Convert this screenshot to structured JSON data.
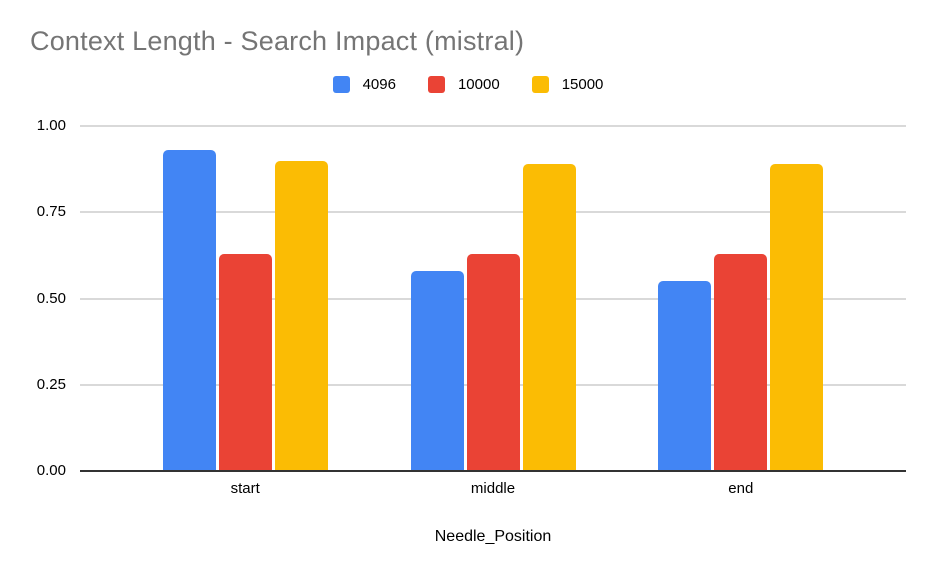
{
  "title": "Context Length - Search Impact (mistral)",
  "colors": {
    "title_text": "#757575",
    "axis_text": "#000000",
    "gridline": "#d9d9d9",
    "axis_line": "#333333",
    "background": "#ffffff",
    "series_blue": "#4285F4",
    "series_red": "#EA4335",
    "series_yellow": "#FBBC04"
  },
  "legend": {
    "items": [
      {
        "label": "4096",
        "color": "#4285F4"
      },
      {
        "label": "10000",
        "color": "#EA4335"
      },
      {
        "label": "15000",
        "color": "#FBBC04"
      }
    ]
  },
  "chart_data": {
    "type": "bar",
    "title": "Context Length - Search Impact (mistral)",
    "xlabel": "Needle_Position",
    "ylabel": "",
    "categories": [
      "start",
      "middle",
      "end"
    ],
    "series": [
      {
        "name": "4096",
        "color": "#4285F4",
        "values": [
          0.93,
          0.58,
          0.55
        ]
      },
      {
        "name": "10000",
        "color": "#EA4335",
        "values": [
          0.63,
          0.63,
          0.63
        ]
      },
      {
        "name": "15000",
        "color": "#FBBC04",
        "values": [
          0.9,
          0.89,
          0.89
        ]
      }
    ],
    "ylim": [
      0,
      1.0
    ],
    "yticks": [
      "0.00",
      "0.25",
      "0.50",
      "0.75",
      "1.00"
    ],
    "grid": true,
    "legend_position": "top-center"
  }
}
